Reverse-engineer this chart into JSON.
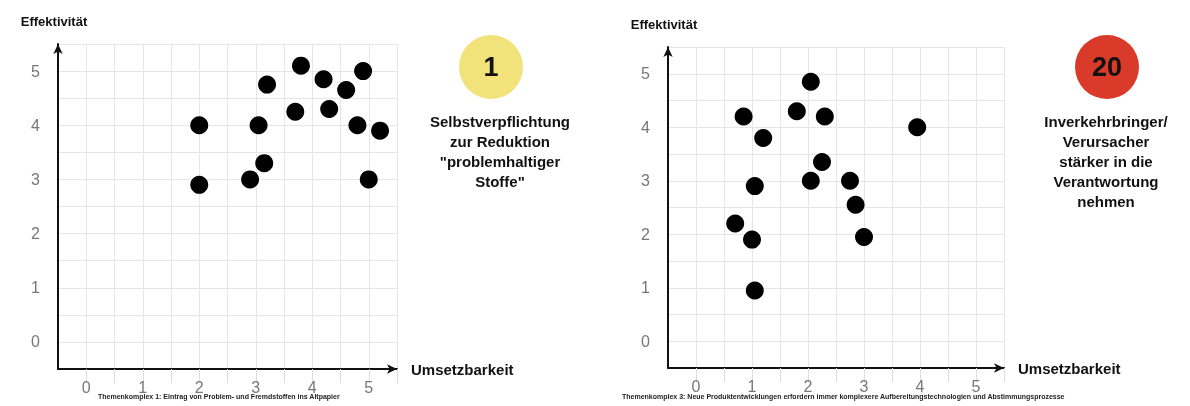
{
  "chart_data": [
    {
      "type": "scatter",
      "xlabel": "Umsetzbarkeit",
      "ylabel": "Effektivität",
      "color": "#000000",
      "marker": "circle",
      "grid": true,
      "x": [
        2,
        2,
        3.05,
        2.9,
        3.15,
        3.2,
        3.8,
        3.7,
        4.2,
        4.3,
        4.6,
        4.9,
        4.8,
        5.2,
        5
      ],
      "values": [
        4,
        2.9,
        4,
        3,
        3.3,
        4.75,
        5.1,
        4.25,
        4.85,
        4.3,
        4.65,
        5,
        4,
        3.9,
        3
      ],
      "xlim": [
        -0.5,
        5.5
      ],
      "ylim": [
        -0.5,
        5.5
      ],
      "xticks": [
        0,
        {
          "value": 0.5,
          "label": null
        },
        1,
        {
          "value": 1.5,
          "label": null
        },
        2,
        {
          "value": 2.5,
          "label": null
        },
        3,
        {
          "value": 3.5,
          "label": null
        },
        4,
        {
          "value": 4.5,
          "label": null
        },
        5,
        {
          "value": 5.5,
          "label": null
        }
      ],
      "yticks": [
        0,
        {
          "value": 0.5,
          "label": null
        },
        1,
        {
          "value": 1.5,
          "label": null
        },
        2,
        {
          "value": 2.5,
          "label": null
        },
        3,
        {
          "value": 3.5,
          "label": null
        },
        4,
        {
          "value": 4.5,
          "label": null
        },
        5,
        {
          "value": 5.5,
          "label": null
        }
      ],
      "annotations": [
        "Themenkomplex 1: Eintrag von Problem- und Fremdstoffen ins Altpapier"
      ]
    },
    {
      "type": "other",
      "title": "1",
      "subtitle": "Selbstverpflichtung\nzur Reduktion\n\"problemhaltiger\nStoffe\""
    },
    {
      "type": "scatter",
      "xlabel": "Umsetzbarkeit",
      "ylabel": "Effektivität",
      "color": "#000000",
      "marker": "circle",
      "grid": true,
      "x": [
        0.85,
        1.2,
        1.05,
        0.7,
        1,
        1.05,
        2.05,
        1.8,
        2.3,
        2.25,
        2.05,
        2.75,
        2.85,
        3,
        3.95
      ],
      "values": [
        4.2,
        3.8,
        2.9,
        2.2,
        1.9,
        0.95,
        4.85,
        4.3,
        4.2,
        3.35,
        3,
        3,
        2.55,
        1.95,
        4
      ],
      "xlim": [
        -0.5,
        5.5
      ],
      "ylim": [
        -0.5,
        5.5
      ],
      "xticks": [
        0,
        {
          "value": 0.5,
          "label": null
        },
        1,
        {
          "value": 1.5,
          "label": null
        },
        2,
        {
          "value": 2.5,
          "label": null
        },
        3,
        {
          "value": 3.5,
          "label": null
        },
        4,
        {
          "value": 4.5,
          "label": null
        },
        5,
        {
          "value": 5.5,
          "label": null
        }
      ],
      "yticks": [
        0,
        {
          "value": 0.5,
          "label": null
        },
        1,
        {
          "value": 1.5,
          "label": null
        },
        2,
        {
          "value": 2.5,
          "label": null
        },
        3,
        {
          "value": 3.5,
          "label": null
        },
        4,
        {
          "value": 4.5,
          "label": null
        },
        5,
        {
          "value": 5.5,
          "label": null
        }
      ],
      "annotations": [
        "Themenkomplex 3: Neue Produktentwicklungen erfordern immer komplexere Aufbereitungstechnologien und Abstimmungsprozesse"
      ]
    },
    {
      "type": "other",
      "title": "20",
      "subtitle": "Inverkehrbringer/\nVerursacher\nstärker in die\nVerantwortung\nnehmen"
    }
  ]
}
